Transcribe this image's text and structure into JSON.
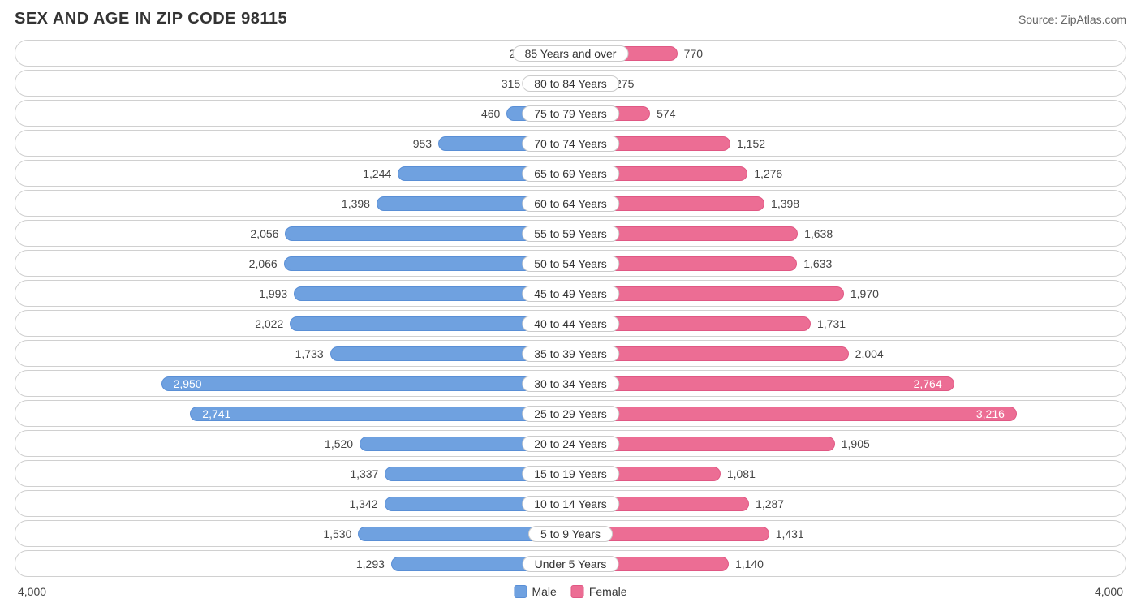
{
  "title": "SEX AND AGE IN ZIP CODE 98115",
  "source": "Source: ZipAtlas.com",
  "chart": {
    "type": "population-pyramid",
    "axis_max": 4000,
    "axis_label_left": "4,000",
    "axis_label_right": "4,000",
    "male_color": "#6fa1e0",
    "female_color": "#ec6d94",
    "row_border_color": "#d0d0d0",
    "background_color": "#ffffff",
    "label_fontsize": 14,
    "title_fontsize": 20,
    "label_inside_threshold": 2700,
    "legend": {
      "male": "Male",
      "female": "Female"
    },
    "rows": [
      {
        "category": "85 Years and over",
        "male": 259,
        "male_label": "259",
        "female": 770,
        "female_label": "770"
      },
      {
        "category": "80 to 84 Years",
        "male": 315,
        "male_label": "315",
        "female": 275,
        "female_label": "275"
      },
      {
        "category": "75 to 79 Years",
        "male": 460,
        "male_label": "460",
        "female": 574,
        "female_label": "574"
      },
      {
        "category": "70 to 74 Years",
        "male": 953,
        "male_label": "953",
        "female": 1152,
        "female_label": "1,152"
      },
      {
        "category": "65 to 69 Years",
        "male": 1244,
        "male_label": "1,244",
        "female": 1276,
        "female_label": "1,276"
      },
      {
        "category": "60 to 64 Years",
        "male": 1398,
        "male_label": "1,398",
        "female": 1398,
        "female_label": "1,398"
      },
      {
        "category": "55 to 59 Years",
        "male": 2056,
        "male_label": "2,056",
        "female": 1638,
        "female_label": "1,638"
      },
      {
        "category": "50 to 54 Years",
        "male": 2066,
        "male_label": "2,066",
        "female": 1633,
        "female_label": "1,633"
      },
      {
        "category": "45 to 49 Years",
        "male": 1993,
        "male_label": "1,993",
        "female": 1970,
        "female_label": "1,970"
      },
      {
        "category": "40 to 44 Years",
        "male": 2022,
        "male_label": "2,022",
        "female": 1731,
        "female_label": "1,731"
      },
      {
        "category": "35 to 39 Years",
        "male": 1733,
        "male_label": "1,733",
        "female": 2004,
        "female_label": "2,004"
      },
      {
        "category": "30 to 34 Years",
        "male": 2950,
        "male_label": "2,950",
        "female": 2764,
        "female_label": "2,764"
      },
      {
        "category": "25 to 29 Years",
        "male": 2741,
        "male_label": "2,741",
        "female": 3216,
        "female_label": "3,216"
      },
      {
        "category": "20 to 24 Years",
        "male": 1520,
        "male_label": "1,520",
        "female": 1905,
        "female_label": "1,905"
      },
      {
        "category": "15 to 19 Years",
        "male": 1337,
        "male_label": "1,337",
        "female": 1081,
        "female_label": "1,081"
      },
      {
        "category": "10 to 14 Years",
        "male": 1342,
        "male_label": "1,342",
        "female": 1287,
        "female_label": "1,287"
      },
      {
        "category": "5 to 9 Years",
        "male": 1530,
        "male_label": "1,530",
        "female": 1431,
        "female_label": "1,431"
      },
      {
        "category": "Under 5 Years",
        "male": 1293,
        "male_label": "1,293",
        "female": 1140,
        "female_label": "1,140"
      }
    ]
  }
}
